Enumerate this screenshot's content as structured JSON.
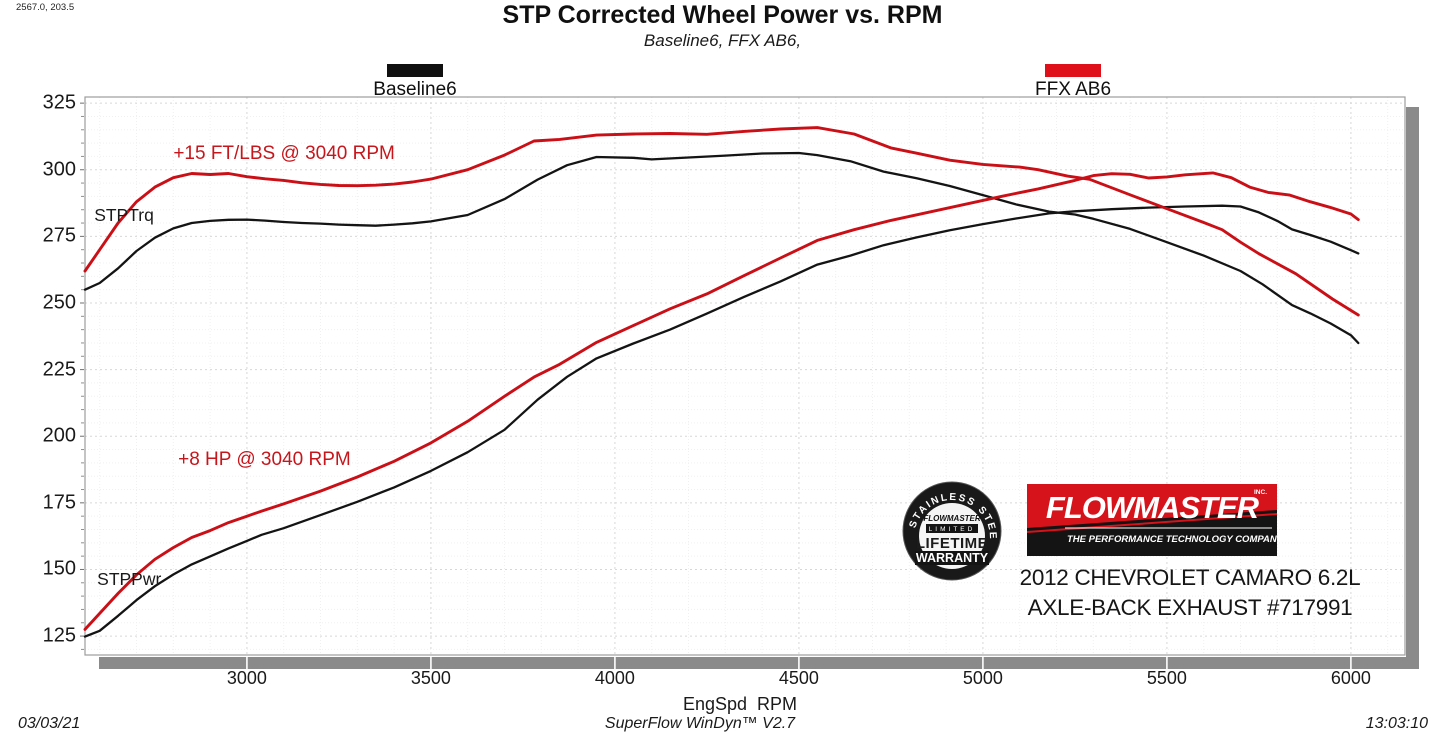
{
  "header": {
    "readout": "2567.0, 203.5",
    "title": "STP Corrected Wheel Power vs. RPM",
    "subtitle": "Baseline6, FFX AB6,"
  },
  "legend": [
    {
      "label": "Baseline6",
      "color": "#101010"
    },
    {
      "label": "FFX AB6",
      "color": "#e0101a"
    }
  ],
  "footer": {
    "date": "03/03/21",
    "software": "SuperFlow WinDyn™ V2.7",
    "time": "13:03:10"
  },
  "branding": {
    "badge": {
      "arc_text": "STAINLESS STEEL",
      "line1": "FLOWMASTER",
      "line2": "LIMITED",
      "line3": "LIFETIME",
      "line4": "WARRANTY"
    },
    "logo": {
      "name": "FLOWMASTER",
      "suffix": "INC.",
      "tagline": "THE PERFORMANCE TECHNOLOGY COMPANY",
      "bg": "#141414",
      "band": "#d6121b"
    },
    "vehicle_line1": "2012 CHEVROLET CAMARO 6.2L",
    "vehicle_line2": "AXLE-BACK EXHAUST #717991"
  },
  "chart_data": {
    "type": "line",
    "title": "STP Corrected Wheel Power vs. RPM",
    "subtitle": "Baseline6, FFX AB6,",
    "xlabel": "EngSpd  RPM",
    "ylabel": "",
    "xlim": [
      2560,
      6147
    ],
    "ylim": [
      117.9,
      327.3
    ],
    "x_ticks": [
      3000,
      3500,
      4000,
      4500,
      5000,
      5500,
      6000
    ],
    "y_ticks": [
      125,
      150,
      175,
      200,
      225,
      250,
      275,
      300,
      325
    ],
    "x_minor_step": 100,
    "y_minor_step": 5,
    "grid": true,
    "legend_position": "top",
    "series": [
      {
        "name": "Baseline6 STPTrq",
        "color": "#141414",
        "width": 2.3,
        "points": [
          [
            2560,
            255
          ],
          [
            2600,
            257.5
          ],
          [
            2650,
            263
          ],
          [
            2700,
            269.5
          ],
          [
            2750,
            274.5
          ],
          [
            2800,
            278
          ],
          [
            2850,
            280
          ],
          [
            2900,
            280.8
          ],
          [
            2950,
            281.2
          ],
          [
            3000,
            281.3
          ],
          [
            3050,
            280.9
          ],
          [
            3100,
            280.4
          ],
          [
            3150,
            280
          ],
          [
            3200,
            279.8
          ],
          [
            3250,
            279.4
          ],
          [
            3300,
            279.2
          ],
          [
            3350,
            279
          ],
          [
            3400,
            279.4
          ],
          [
            3450,
            279.9
          ],
          [
            3500,
            280.6
          ],
          [
            3600,
            283
          ],
          [
            3700,
            289
          ],
          [
            3790,
            296.3
          ],
          [
            3870,
            301.7
          ],
          [
            3950,
            304.8
          ],
          [
            4050,
            304.5
          ],
          [
            4100,
            303.9
          ],
          [
            4200,
            304.6
          ],
          [
            4300,
            305.3
          ],
          [
            4400,
            306.1
          ],
          [
            4500,
            306.3
          ],
          [
            4550,
            305.5
          ],
          [
            4640,
            303.2
          ],
          [
            4730,
            299.3
          ],
          [
            4820,
            296.8
          ],
          [
            4910,
            293.9
          ],
          [
            5000,
            290.5
          ],
          [
            5090,
            287
          ],
          [
            5180,
            284.3
          ],
          [
            5250,
            283.2
          ],
          [
            5300,
            281.6
          ],
          [
            5400,
            277.8
          ],
          [
            5500,
            272.8
          ],
          [
            5600,
            267.8
          ],
          [
            5700,
            262
          ],
          [
            5760,
            257
          ],
          [
            5840,
            249.2
          ],
          [
            5890,
            246.1
          ],
          [
            5945,
            242.3
          ],
          [
            6000,
            237.9
          ],
          [
            6020,
            235
          ]
        ]
      },
      {
        "name": "Baseline6 STPPwr",
        "color": "#141414",
        "width": 2.3,
        "points": [
          [
            2560,
            124.8
          ],
          [
            2600,
            127
          ],
          [
            2650,
            132.6
          ],
          [
            2700,
            138.5
          ],
          [
            2750,
            143.7
          ],
          [
            2800,
            148.1
          ],
          [
            2850,
            151.9
          ],
          [
            2900,
            154.9
          ],
          [
            2950,
            157.9
          ],
          [
            3000,
            160.7
          ],
          [
            3040,
            163
          ],
          [
            3100,
            165.5
          ],
          [
            3200,
            170.4
          ],
          [
            3300,
            175.4
          ],
          [
            3400,
            180.8
          ],
          [
            3500,
            187
          ],
          [
            3600,
            194
          ],
          [
            3700,
            202.4
          ],
          [
            3790,
            213.7
          ],
          [
            3870,
            222.3
          ],
          [
            3950,
            229.2
          ],
          [
            4050,
            234.8
          ],
          [
            4150,
            240
          ],
          [
            4250,
            246
          ],
          [
            4350,
            252.2
          ],
          [
            4450,
            258.1
          ],
          [
            4550,
            264.4
          ],
          [
            4640,
            267.8
          ],
          [
            4730,
            271.7
          ],
          [
            4820,
            274.6
          ],
          [
            4910,
            277.3
          ],
          [
            5000,
            279.6
          ],
          [
            5090,
            281.7
          ],
          [
            5180,
            283.6
          ],
          [
            5250,
            284.4
          ],
          [
            5350,
            285.2
          ],
          [
            5450,
            285.8
          ],
          [
            5550,
            286.2
          ],
          [
            5650,
            286.5
          ],
          [
            5700,
            286.2
          ],
          [
            5750,
            284
          ],
          [
            5800,
            280.8
          ],
          [
            5840,
            277.6
          ],
          [
            5890,
            275.5
          ],
          [
            5945,
            273
          ],
          [
            6000,
            269.8
          ],
          [
            6020,
            268.6
          ]
        ]
      },
      {
        "name": "FFX AB6 STPTrq",
        "color": "#cb0f16",
        "width": 2.9,
        "points": [
          [
            2560,
            262
          ],
          [
            2600,
            270
          ],
          [
            2650,
            280
          ],
          [
            2700,
            288
          ],
          [
            2750,
            293.5
          ],
          [
            2800,
            297
          ],
          [
            2850,
            298.6
          ],
          [
            2900,
            298.2
          ],
          [
            2950,
            298.6
          ],
          [
            3000,
            297.4
          ],
          [
            3050,
            296.6
          ],
          [
            3100,
            296
          ],
          [
            3150,
            295.1
          ],
          [
            3200,
            294.5
          ],
          [
            3250,
            294.1
          ],
          [
            3300,
            294
          ],
          [
            3350,
            294.2
          ],
          [
            3400,
            294.6
          ],
          [
            3450,
            295.4
          ],
          [
            3500,
            296.5
          ],
          [
            3600,
            300
          ],
          [
            3700,
            305.5
          ],
          [
            3780,
            310.8
          ],
          [
            3850,
            311.4
          ],
          [
            3950,
            313
          ],
          [
            4050,
            313.4
          ],
          [
            4150,
            313.6
          ],
          [
            4250,
            313.3
          ],
          [
            4350,
            314.4
          ],
          [
            4450,
            315.3
          ],
          [
            4550,
            315.8
          ],
          [
            4650,
            313.4
          ],
          [
            4750,
            308.2
          ],
          [
            4820,
            306.2
          ],
          [
            4910,
            303.6
          ],
          [
            5000,
            302
          ],
          [
            5100,
            301
          ],
          [
            5150,
            300
          ],
          [
            5230,
            297.6
          ],
          [
            5290,
            296.4
          ],
          [
            5400,
            290.6
          ],
          [
            5500,
            285.4
          ],
          [
            5600,
            280.2
          ],
          [
            5650,
            277.5
          ],
          [
            5700,
            272.8
          ],
          [
            5750,
            268.5
          ],
          [
            5850,
            261
          ],
          [
            5950,
            251.5
          ],
          [
            6020,
            245.5
          ]
        ]
      },
      {
        "name": "FFX AB6 STPPwr",
        "color": "#cb0f16",
        "width": 2.9,
        "points": [
          [
            2560,
            127.5
          ],
          [
            2600,
            133.5
          ],
          [
            2650,
            141
          ],
          [
            2700,
            148
          ],
          [
            2750,
            153.8
          ],
          [
            2800,
            158.2
          ],
          [
            2850,
            162
          ],
          [
            2900,
            164.6
          ],
          [
            2950,
            167.6
          ],
          [
            3000,
            170
          ],
          [
            3040,
            171.9
          ],
          [
            3100,
            174.6
          ],
          [
            3200,
            179.4
          ],
          [
            3300,
            184.7
          ],
          [
            3400,
            190.6
          ],
          [
            3500,
            197.5
          ],
          [
            3600,
            205.6
          ],
          [
            3700,
            215
          ],
          [
            3780,
            222.2
          ],
          [
            3850,
            227
          ],
          [
            3950,
            235.2
          ],
          [
            4050,
            241.5
          ],
          [
            4150,
            247.8
          ],
          [
            4250,
            253.4
          ],
          [
            4350,
            260.2
          ],
          [
            4450,
            266.9
          ],
          [
            4550,
            273.5
          ],
          [
            4650,
            277.5
          ],
          [
            4750,
            281
          ],
          [
            4850,
            284
          ],
          [
            4950,
            287
          ],
          [
            5050,
            290
          ],
          [
            5150,
            292.8
          ],
          [
            5250,
            296
          ],
          [
            5300,
            297.8
          ],
          [
            5350,
            298.5
          ],
          [
            5400,
            298.3
          ],
          [
            5450,
            296.9
          ],
          [
            5500,
            297.3
          ],
          [
            5550,
            298.1
          ],
          [
            5625,
            298.8
          ],
          [
            5675,
            297
          ],
          [
            5725,
            293.5
          ],
          [
            5775,
            291.5
          ],
          [
            5834,
            290.5
          ],
          [
            5889,
            288
          ],
          [
            5943,
            285.9
          ],
          [
            6000,
            283.4
          ],
          [
            6020,
            281.3
          ]
        ]
      }
    ],
    "annotations": [
      {
        "id": "gain-torque",
        "text": "+15 FT/LBS @ 3040 RPM",
        "rpm": 2800,
        "value": 306.5,
        "color": "#c6161c",
        "size": 19
      },
      {
        "id": "label-stptrq",
        "text": "STPTrq",
        "rpm": 2585,
        "value": 283.5,
        "color": "#1a1a1a",
        "size": 17.5
      },
      {
        "id": "gain-power",
        "text": "+8 HP @ 3040 RPM",
        "rpm": 2813,
        "value": 191.5,
        "color": "#c6161c",
        "size": 19
      },
      {
        "id": "label-stppwr",
        "text": "STPPwr",
        "rpm": 2593,
        "value": 147,
        "color": "#1a1a1a",
        "size": 17.5
      }
    ]
  }
}
